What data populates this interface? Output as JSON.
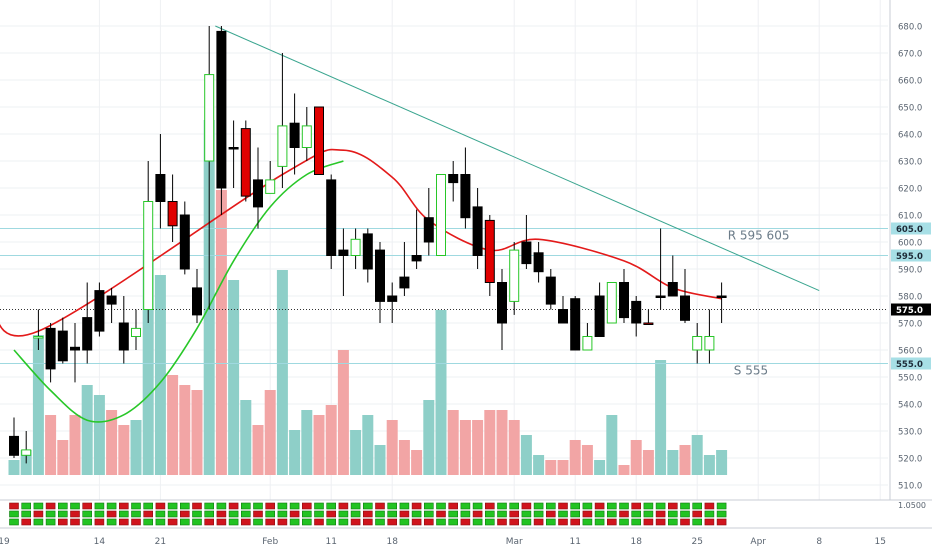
{
  "chart_data": {
    "type": "candlestick",
    "title": "",
    "xlabel": "",
    "ylabel": "",
    "ylim": [
      505,
      685
    ],
    "y_ticks": [
      510,
      520,
      530,
      540,
      550,
      560,
      570,
      580,
      590,
      600,
      610,
      620,
      630,
      640,
      650,
      660,
      670,
      680
    ],
    "y_tick_labels": [
      "510.0",
      "520.0",
      "530.0",
      "540.0",
      "550.0",
      "560.0",
      "570.0",
      "580.0",
      "590.0",
      "600.0",
      "610.0",
      "620.0",
      "630.0",
      "640.0",
      "650.0",
      "660.0",
      "670.0",
      "680.0"
    ],
    "x_tick_labels": [
      {
        "label": "19",
        "i": -1.5
      },
      {
        "label": "14",
        "i": 7
      },
      {
        "label": "21",
        "i": 12
      },
      {
        "label": "Feb",
        "i": 21
      },
      {
        "label": "11",
        "i": 26
      },
      {
        "label": "18",
        "i": 31
      },
      {
        "label": "Mar",
        "i": 41
      },
      {
        "label": "11",
        "i": 46
      },
      {
        "label": "18",
        "i": 51
      },
      {
        "label": "25",
        "i": 56
      },
      {
        "label": "Apr",
        "i": 61
      },
      {
        "label": "8",
        "i": 66
      },
      {
        "label": "15",
        "i": 71
      }
    ],
    "candles": [
      {
        "o": 528,
        "h": 535,
        "l": 520,
        "c": 521,
        "d": "down"
      },
      {
        "o": 521,
        "h": 530,
        "l": 518,
        "c": 523,
        "d": "up"
      },
      {
        "o": 565,
        "h": 575,
        "l": 560,
        "c": 565,
        "d": "up"
      },
      {
        "o": 568,
        "h": 570,
        "l": 548,
        "c": 553,
        "d": "down"
      },
      {
        "o": 567,
        "h": 572,
        "l": 555,
        "c": 556,
        "d": "down"
      },
      {
        "o": 561,
        "h": 570,
        "l": 548,
        "c": 560,
        "d": "down"
      },
      {
        "o": 572,
        "h": 585,
        "l": 555,
        "c": 560,
        "d": "down"
      },
      {
        "o": 582,
        "h": 585,
        "l": 565,
        "c": 567,
        "d": "down"
      },
      {
        "o": 580,
        "h": 583,
        "l": 570,
        "c": 577,
        "d": "down"
      },
      {
        "o": 570,
        "h": 580,
        "l": 555,
        "c": 560,
        "d": "down"
      },
      {
        "o": 565,
        "h": 575,
        "l": 560,
        "c": 568,
        "d": "up"
      },
      {
        "o": 575,
        "h": 630,
        "l": 570,
        "c": 615,
        "d": "up"
      },
      {
        "o": 625,
        "h": 640,
        "l": 605,
        "c": 615,
        "d": "down"
      },
      {
        "o": 615,
        "h": 625,
        "l": 600,
        "c": 606,
        "d": "down"
      },
      {
        "o": 610,
        "h": 615,
        "l": 588,
        "c": 590,
        "d": "down"
      },
      {
        "o": 583,
        "h": 590,
        "l": 570,
        "c": 573,
        "d": "down"
      },
      {
        "o": 630,
        "h": 680,
        "l": 575,
        "c": 662,
        "d": "up"
      },
      {
        "o": 678,
        "h": 680,
        "l": 610,
        "c": 620,
        "d": "down"
      },
      {
        "o": 635,
        "h": 645,
        "l": 620,
        "c": 635,
        "d": "down"
      },
      {
        "o": 642,
        "h": 645,
        "l": 615,
        "c": 617,
        "d": "down"
      },
      {
        "o": 623,
        "h": 635,
        "l": 605,
        "c": 613,
        "d": "down"
      },
      {
        "o": 618,
        "h": 630,
        "l": 618,
        "c": 623,
        "d": "up"
      },
      {
        "o": 628,
        "h": 670,
        "l": 620,
        "c": 643,
        "d": "up"
      },
      {
        "o": 644,
        "h": 655,
        "l": 625,
        "c": 635,
        "d": "down"
      },
      {
        "o": 635,
        "h": 650,
        "l": 630,
        "c": 643,
        "d": "up"
      },
      {
        "o": 650,
        "h": 650,
        "l": 625,
        "c": 625,
        "d": "down"
      },
      {
        "o": 623,
        "h": 625,
        "l": 590,
        "c": 595,
        "d": "down"
      },
      {
        "o": 595,
        "h": 605,
        "l": 580,
        "c": 597,
        "d": "down"
      },
      {
        "o": 595,
        "h": 605,
        "l": 590,
        "c": 601,
        "d": "up"
      },
      {
        "o": 603,
        "h": 605,
        "l": 585,
        "c": 590,
        "d": "down"
      },
      {
        "o": 597,
        "h": 600,
        "l": 570,
        "c": 578,
        "d": "down"
      },
      {
        "o": 578,
        "h": 585,
        "l": 570,
        "c": 580,
        "d": "down"
      },
      {
        "o": 587,
        "h": 600,
        "l": 580,
        "c": 583,
        "d": "down"
      },
      {
        "o": 595,
        "h": 612,
        "l": 590,
        "c": 593,
        "d": "down"
      },
      {
        "o": 600,
        "h": 620,
        "l": 595,
        "c": 609,
        "d": "down"
      },
      {
        "o": 595,
        "h": 625,
        "l": 595,
        "c": 625,
        "d": "up"
      },
      {
        "o": 625,
        "h": 630,
        "l": 615,
        "c": 622,
        "d": "down"
      },
      {
        "o": 625,
        "h": 635,
        "l": 605,
        "c": 609,
        "d": "down"
      },
      {
        "o": 613,
        "h": 620,
        "l": 590,
        "c": 595,
        "d": "down"
      },
      {
        "o": 608,
        "h": 610,
        "l": 580,
        "c": 585,
        "d": "down"
      },
      {
        "o": 585,
        "h": 590,
        "l": 560,
        "c": 570,
        "d": "down"
      },
      {
        "o": 578,
        "h": 600,
        "l": 573,
        "c": 597,
        "d": "up"
      },
      {
        "o": 600,
        "h": 610,
        "l": 590,
        "c": 592,
        "d": "down"
      },
      {
        "o": 596,
        "h": 600,
        "l": 585,
        "c": 589,
        "d": "down"
      },
      {
        "o": 587,
        "h": 590,
        "l": 575,
        "c": 577,
        "d": "down"
      },
      {
        "o": 575,
        "h": 580,
        "l": 570,
        "c": 570,
        "d": "down"
      },
      {
        "o": 579,
        "h": 580,
        "l": 560,
        "c": 560,
        "d": "down"
      },
      {
        "o": 560,
        "h": 570,
        "l": 560,
        "c": 565,
        "d": "up"
      },
      {
        "o": 580,
        "h": 585,
        "l": 565,
        "c": 565,
        "d": "down"
      },
      {
        "o": 570,
        "h": 585,
        "l": 570,
        "c": 585,
        "d": "up"
      },
      {
        "o": 585,
        "h": 590,
        "l": 570,
        "c": 572,
        "d": "down"
      },
      {
        "o": 578,
        "h": 580,
        "l": 565,
        "c": 570,
        "d": "down"
      },
      {
        "o": 570,
        "h": 575,
        "l": 570,
        "c": 570,
        "d": "down"
      },
      {
        "o": 580,
        "h": 605,
        "l": 575,
        "c": 580,
        "d": "down"
      },
      {
        "o": 585,
        "h": 595,
        "l": 580,
        "c": 580,
        "d": "down"
      },
      {
        "o": 580,
        "h": 590,
        "l": 570,
        "c": 571,
        "d": "down"
      },
      {
        "o": 560,
        "h": 570,
        "l": 555,
        "c": 565,
        "d": "up"
      },
      {
        "o": 560,
        "h": 575,
        "l": 555,
        "c": 565,
        "d": "up"
      },
      {
        "o": 580,
        "h": 585,
        "l": 570,
        "c": 580,
        "d": "down"
      }
    ],
    "volume_bars": [
      {
        "h": 15,
        "color": "teal"
      },
      {
        "h": 25,
        "color": "teal"
      },
      {
        "h": 140,
        "color": "teal"
      },
      {
        "h": 60,
        "color": "pink"
      },
      {
        "h": 35,
        "color": "pink"
      },
      {
        "h": 60,
        "color": "pink"
      },
      {
        "h": 90,
        "color": "teal"
      },
      {
        "h": 80,
        "color": "teal"
      },
      {
        "h": 65,
        "color": "pink"
      },
      {
        "h": 50,
        "color": "pink"
      },
      {
        "h": 55,
        "color": "teal"
      },
      {
        "h": 225,
        "color": "teal"
      },
      {
        "h": 200,
        "color": "teal"
      },
      {
        "h": 100,
        "color": "pink"
      },
      {
        "h": 90,
        "color": "pink"
      },
      {
        "h": 85,
        "color": "pink"
      },
      {
        "h": 355,
        "color": "teal"
      },
      {
        "h": 285,
        "color": "pink"
      },
      {
        "h": 195,
        "color": "teal"
      },
      {
        "h": 75,
        "color": "teal"
      },
      {
        "h": 50,
        "color": "pink"
      },
      {
        "h": 85,
        "color": "pink"
      },
      {
        "h": 205,
        "color": "teal"
      },
      {
        "h": 45,
        "color": "teal"
      },
      {
        "h": 65,
        "color": "teal"
      },
      {
        "h": 60,
        "color": "pink"
      },
      {
        "h": 70,
        "color": "pink"
      },
      {
        "h": 125,
        "color": "pink"
      },
      {
        "h": 45,
        "color": "teal"
      },
      {
        "h": 60,
        "color": "teal"
      },
      {
        "h": 30,
        "color": "teal"
      },
      {
        "h": 55,
        "color": "pink"
      },
      {
        "h": 35,
        "color": "pink"
      },
      {
        "h": 25,
        "color": "pink"
      },
      {
        "h": 75,
        "color": "teal"
      },
      {
        "h": 165,
        "color": "teal"
      },
      {
        "h": 65,
        "color": "pink"
      },
      {
        "h": 55,
        "color": "pink"
      },
      {
        "h": 55,
        "color": "pink"
      },
      {
        "h": 65,
        "color": "pink"
      },
      {
        "h": 65,
        "color": "pink"
      },
      {
        "h": 55,
        "color": "pink"
      },
      {
        "h": 40,
        "color": "teal"
      },
      {
        "h": 20,
        "color": "teal"
      },
      {
        "h": 15,
        "color": "pink"
      },
      {
        "h": 15,
        "color": "pink"
      },
      {
        "h": 35,
        "color": "pink"
      },
      {
        "h": 30,
        "color": "pink"
      },
      {
        "h": 15,
        "color": "teal"
      },
      {
        "h": 60,
        "color": "teal"
      },
      {
        "h": 10,
        "color": "pink"
      },
      {
        "h": 35,
        "color": "pink"
      },
      {
        "h": 25,
        "color": "pink"
      },
      {
        "h": 115,
        "color": "teal"
      },
      {
        "h": 25,
        "color": "teal"
      },
      {
        "h": 30,
        "color": "pink"
      },
      {
        "h": 40,
        "color": "teal"
      },
      {
        "h": 20,
        "color": "teal"
      },
      {
        "h": 25,
        "color": "teal"
      }
    ],
    "moving_average_red": [
      {
        "i": -2,
        "y": 580
      },
      {
        "i": 2,
        "y": 567
      },
      {
        "i": 22,
        "y": 625
      },
      {
        "i": 27,
        "y": 634
      },
      {
        "i": 31,
        "y": 624
      },
      {
        "i": 34,
        "y": 608
      },
      {
        "i": 39,
        "y": 597
      },
      {
        "i": 43,
        "y": 601
      },
      {
        "i": 50,
        "y": 593
      },
      {
        "i": 54,
        "y": 583
      },
      {
        "i": 58,
        "y": 579
      }
    ],
    "moving_average_green": [
      {
        "i": 0,
        "y": 560
      },
      {
        "i": 3,
        "y": 545
      },
      {
        "i": 6,
        "y": 534
      },
      {
        "i": 9,
        "y": 536
      },
      {
        "i": 12,
        "y": 548
      },
      {
        "i": 15,
        "y": 568
      },
      {
        "i": 18,
        "y": 593
      },
      {
        "i": 21,
        "y": 613
      },
      {
        "i": 24,
        "y": 625
      },
      {
        "i": 27,
        "y": 630
      }
    ],
    "trendline": {
      "from": {
        "i": 16.5,
        "y": 680
      },
      "to": {
        "i": 66,
        "y": 582
      }
    },
    "horizontal_levels": [
      {
        "value": 605.0,
        "label": "605.0",
        "style": "solid"
      },
      {
        "value": 595.0,
        "label": "595.0",
        "style": "solid"
      },
      {
        "value": 575.0,
        "label": "575.0",
        "style": "dotted"
      },
      {
        "value": 555.0,
        "label": "555.0",
        "style": "solid"
      }
    ],
    "annotations": [
      {
        "text": "R  595  605",
        "i": 58.5,
        "y": 601
      },
      {
        "text": "S  555",
        "i": 59,
        "y": 551
      }
    ],
    "indicator_row_right_label": "1.0500",
    "indicator_rows": 3,
    "colors": {
      "candle_down": "#000000",
      "candle_up": "#90ee90",
      "candle_down_alt": "#e00000",
      "volume_teal": "#8ecfc8",
      "volume_pink": "#f2a5a5",
      "ma_red": "#e31a1a",
      "ma_green": "#28c728",
      "trendline": "#3aa58f",
      "level_line": "#9fd9e0",
      "ind_green": "#22c322",
      "ind_red": "#d0141d"
    }
  }
}
